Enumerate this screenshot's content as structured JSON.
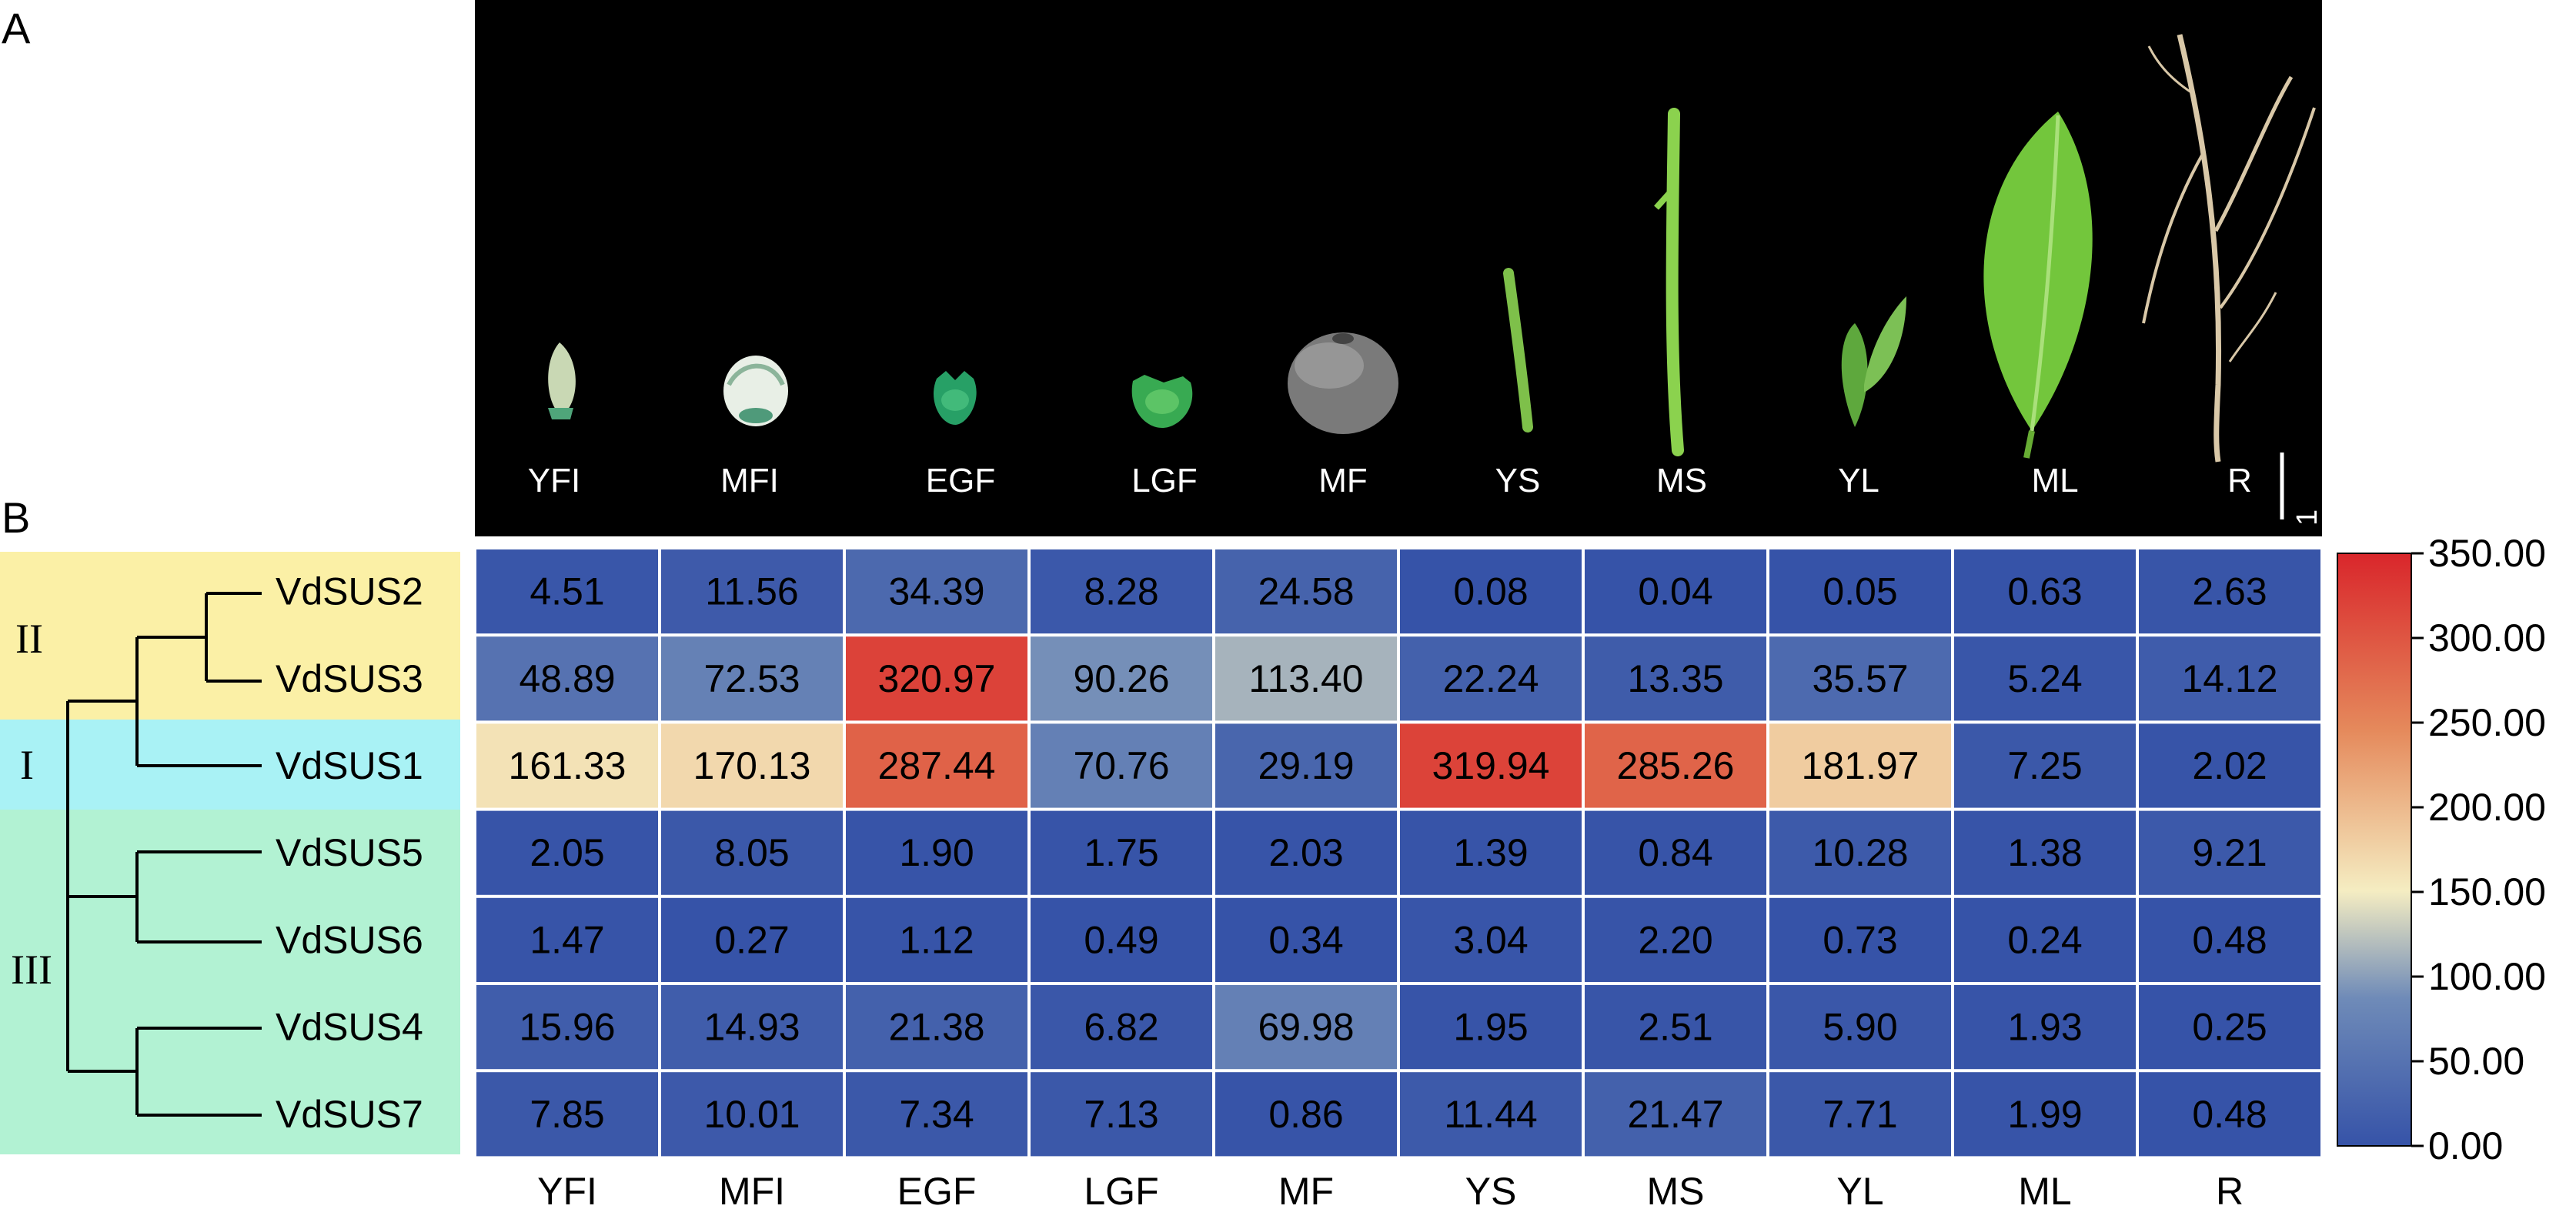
{
  "panels": {
    "a": "A",
    "b": "B"
  },
  "photo": {
    "labels": [
      "YFI",
      "MFI",
      "EGF",
      "LGF",
      "MF",
      "YS",
      "MS",
      "YL",
      "ML",
      "R"
    ],
    "scale_bar": "1 cm"
  },
  "clades": [
    "II",
    "I",
    "III"
  ],
  "colors": {
    "low": "#3653a8",
    "mid": "#f5edc2",
    "high": "#d9262b",
    "clade_II": "#fbf0a6",
    "clade_I": "#a9f2f5",
    "clade_III": "#b2f2d3"
  },
  "chart_data": {
    "type": "heatmap",
    "columns": [
      "YFI",
      "MFI",
      "EGF",
      "LGF",
      "MF",
      "YS",
      "MS",
      "YL",
      "ML",
      "R"
    ],
    "rows": [
      "VdSUS2",
      "VdSUS3",
      "VdSUS1",
      "VdSUS5",
      "VdSUS6",
      "VdSUS4",
      "VdSUS7"
    ],
    "values": [
      [
        4.51,
        11.56,
        34.39,
        8.28,
        24.58,
        0.08,
        0.04,
        0.05,
        0.63,
        2.63
      ],
      [
        48.89,
        72.53,
        320.97,
        90.26,
        113.4,
        22.24,
        13.35,
        35.57,
        5.24,
        14.12
      ],
      [
        161.33,
        170.13,
        287.44,
        70.76,
        29.19,
        319.94,
        285.26,
        181.97,
        7.25,
        2.02
      ],
      [
        2.05,
        8.05,
        1.9,
        1.75,
        2.03,
        1.39,
        0.84,
        10.28,
        1.38,
        9.21
      ],
      [
        1.47,
        0.27,
        1.12,
        0.49,
        0.34,
        3.04,
        2.2,
        0.73,
        0.24,
        0.48
      ],
      [
        15.96,
        14.93,
        21.38,
        6.82,
        69.98,
        1.95,
        2.51,
        5.9,
        1.93,
        0.25
      ],
      [
        7.85,
        10.01,
        7.34,
        7.13,
        0.86,
        11.44,
        21.47,
        7.71,
        1.99,
        0.48
      ]
    ],
    "value_labels": [
      [
        "4.51",
        "11.56",
        "34.39",
        "8.28",
        "24.58",
        "0.08",
        "0.04",
        "0.05",
        "0.63",
        "2.63"
      ],
      [
        "48.89",
        "72.53",
        "320.97",
        "90.26",
        "113.40",
        "22.24",
        "13.35",
        "35.57",
        "5.24",
        "14.12"
      ],
      [
        "161.33",
        "170.13",
        "287.44",
        "70.76",
        "29.19",
        "319.94",
        "285.26",
        "181.97",
        "7.25",
        "2.02"
      ],
      [
        "2.05",
        "8.05",
        "1.90",
        "1.75",
        "2.03",
        "1.39",
        "0.84",
        "10.28",
        "1.38",
        "9.21"
      ],
      [
        "1.47",
        "0.27",
        "1.12",
        "0.49",
        "0.34",
        "3.04",
        "2.20",
        "0.73",
        "0.24",
        "0.48"
      ],
      [
        "15.96",
        "14.93",
        "21.38",
        "6.82",
        "69.98",
        "1.95",
        "2.51",
        "5.90",
        "1.93",
        "0.25"
      ],
      [
        "7.85",
        "10.01",
        "7.34",
        "7.13",
        "0.86",
        "11.44",
        "21.47",
        "7.71",
        "1.99",
        "0.48"
      ]
    ],
    "colorbar": {
      "range": [
        0,
        350
      ],
      "ticks": [
        "0.00",
        "50.00",
        "100.00",
        "150.00",
        "200.00",
        "250.00",
        "300.00",
        "350.00"
      ]
    }
  }
}
